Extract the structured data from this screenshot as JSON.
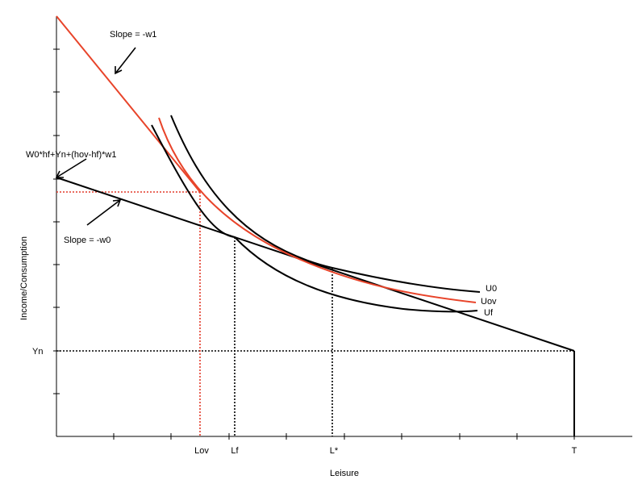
{
  "axes": {
    "x_label": "Leisure",
    "y_label": "Income/Consumption"
  },
  "x_ticks": {
    "lov": "Lov",
    "lf": "Lf",
    "lstar": "L*",
    "t": "T"
  },
  "y_ticks": {
    "yn": "Yn"
  },
  "annotations": {
    "slope_w1": "Slope = -w1",
    "slope_w0": "Slope = -w0",
    "kink_formula": "W0*hf+Yn+(hov-hf)*w1"
  },
  "curves": {
    "u0": "U0",
    "uov": "Uov",
    "uf": "Uf"
  },
  "colors": {
    "black": "#000000",
    "overtime": "#e8442a",
    "overtime_guide": "#e23a2a"
  }
}
